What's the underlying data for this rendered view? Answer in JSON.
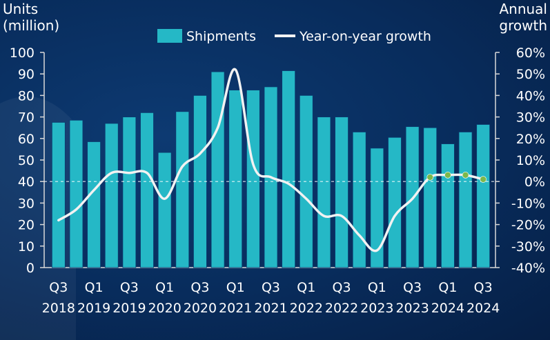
{
  "chart_data": {
    "type": "bar+line",
    "left_axis_title": [
      "Units",
      "(million)"
    ],
    "right_axis_title": [
      "Annual",
      "growth"
    ],
    "left_ylim": [
      0,
      100
    ],
    "left_ticks": [
      "100",
      "90",
      "80",
      "70",
      "60",
      "50",
      "40",
      "30",
      "20",
      "10",
      "0"
    ],
    "right_ylim": [
      -40,
      60
    ],
    "right_ticks": [
      "60%",
      "50%",
      "40%",
      "30%",
      "20%",
      "10%",
      "0%",
      "-10%",
      "-20%",
      "-30%",
      "-40%"
    ],
    "legend": {
      "placement": "top-center",
      "bar_label": "Shipments",
      "line_label": "Year-on-year growth"
    },
    "categories": [
      "Q3 2018",
      "Q4 2018",
      "Q1 2019",
      "Q2 2019",
      "Q3 2019",
      "Q4 2019",
      "Q1 2020",
      "Q2 2020",
      "Q3 2020",
      "Q4 2020",
      "Q1 2021",
      "Q2 2021",
      "Q3 2021",
      "Q4 2021",
      "Q1 2022",
      "Q2 2022",
      "Q3 2022",
      "Q4 2022",
      "Q1 2023",
      "Q2 2023",
      "Q3 2023",
      "Q4 2023",
      "Q1 2024",
      "Q2 2024",
      "Q3 2024"
    ],
    "x_tick_labels": [
      {
        "index": 0,
        "q": "Q3",
        "year": "2018"
      },
      {
        "index": 2,
        "q": "Q1",
        "year": "2019"
      },
      {
        "index": 4,
        "q": "Q3",
        "year": "2019"
      },
      {
        "index": 6,
        "q": "Q1",
        "year": "2020"
      },
      {
        "index": 8,
        "q": "Q3",
        "year": "2020"
      },
      {
        "index": 10,
        "q": "Q1",
        "year": "2021"
      },
      {
        "index": 12,
        "q": "Q3",
        "year": "2021"
      },
      {
        "index": 14,
        "q": "Q1",
        "year": "2022"
      },
      {
        "index": 16,
        "q": "Q3",
        "year": "2022"
      },
      {
        "index": 18,
        "q": "Q1",
        "year": "2023"
      },
      {
        "index": 20,
        "q": "Q3",
        "year": "2023"
      },
      {
        "index": 22,
        "q": "Q1",
        "year": "2024"
      },
      {
        "index": 24,
        "q": "Q3",
        "year": "2024"
      }
    ],
    "series": [
      {
        "name": "Shipments",
        "type": "bar",
        "axis": "left",
        "values": [
          67.5,
          68.5,
          58.5,
          67,
          70,
          72,
          53.5,
          72.5,
          80,
          91,
          82.5,
          82.5,
          84,
          91.5,
          80,
          70,
          70,
          63,
          55.5,
          60.5,
          65.5,
          65,
          57.5,
          63,
          66.5
        ]
      },
      {
        "name": "Year-on-year growth",
        "type": "line",
        "axis": "right",
        "values": [
          -18,
          -13,
          -4,
          4,
          4,
          4,
          -8,
          7,
          13,
          25,
          52,
          8,
          2,
          -1,
          -8,
          -16,
          -16,
          -25,
          -32,
          -16,
          -8,
          2,
          3,
          3,
          1
        ]
      }
    ],
    "highlighted_points": [
      21,
      22,
      23,
      24
    ],
    "reference_line": {
      "value": 0,
      "axis": "right",
      "style": "dashed"
    },
    "colors": {
      "bar": "#25b8c6",
      "line": "#f2f2f2",
      "highlight_marker": "#7db84a",
      "text": "#ffffff",
      "axis": "#d9d9d9"
    }
  }
}
